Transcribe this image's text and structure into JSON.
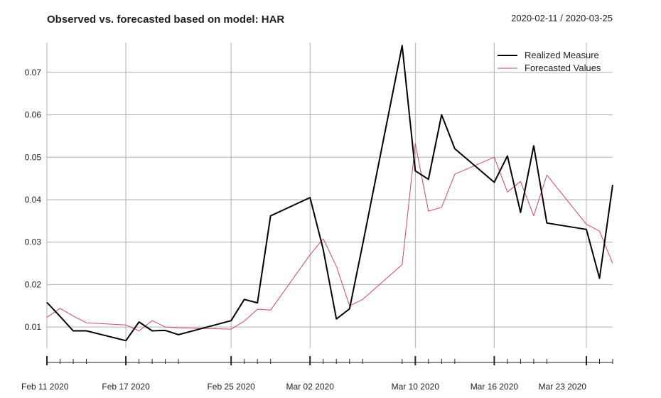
{
  "chart_data": {
    "type": "line",
    "title": "Observed vs. forecasted based on model:  HAR",
    "date_range": "2020-02-11 / 2020-03-25",
    "xlabel": "",
    "ylabel": "",
    "ylim": [
      0.005,
      0.077
    ],
    "yticks": [
      0.01,
      0.02,
      0.03,
      0.04,
      0.05,
      0.06,
      0.07
    ],
    "ytick_labels": [
      "0.01",
      "0.02",
      "0.03",
      "0.04",
      "0.05",
      "0.06",
      "0.07"
    ],
    "xticks": [
      {
        "x": "2020-02-11",
        "label": "Feb 11 2020"
      },
      {
        "x": "2020-02-17",
        "label": "Feb 17 2020"
      },
      {
        "x": "2020-02-25",
        "label": "Feb 25 2020"
      },
      {
        "x": "2020-03-02",
        "label": "Mar 02 2020"
      },
      {
        "x": "2020-03-10",
        "label": "Mar 10 2020"
      },
      {
        "x": "2020-03-16",
        "label": "Mar 16 2020"
      },
      {
        "x": "2020-03-23",
        "label": "Mar 23 2020"
      }
    ],
    "grid": true,
    "legend_position": "top-right",
    "x": [
      "2020-02-11",
      "2020-02-12",
      "2020-02-13",
      "2020-02-14",
      "2020-02-17",
      "2020-02-18",
      "2020-02-19",
      "2020-02-20",
      "2020-02-21",
      "2020-02-25",
      "2020-02-26",
      "2020-02-27",
      "2020-02-28",
      "2020-03-02",
      "2020-03-03",
      "2020-03-04",
      "2020-03-05",
      "2020-03-06",
      "2020-03-09",
      "2020-03-10",
      "2020-03-11",
      "2020-03-12",
      "2020-03-13",
      "2020-03-16",
      "2020-03-17",
      "2020-03-18",
      "2020-03-19",
      "2020-03-20",
      "2020-03-23",
      "2020-03-24",
      "2020-03-25"
    ],
    "series": [
      {
        "name": "Realized Measure",
        "color": "#000000",
        "values": [
          0.0158,
          0.0125,
          0.0091,
          0.0091,
          0.0068,
          0.0112,
          0.0091,
          0.0092,
          0.0082,
          0.0115,
          0.0165,
          0.0157,
          0.0362,
          0.0405,
          0.0283,
          0.0119,
          0.0143,
          0.0295,
          0.0763,
          0.0468,
          0.0448,
          0.06,
          0.052,
          0.0441,
          0.0503,
          0.037,
          0.0527,
          0.0345,
          0.033,
          0.0215,
          0.0435
        ]
      },
      {
        "name": "Forecasted Values",
        "color": "#d1495b",
        "values": [
          0.0123,
          0.0144,
          0.0126,
          0.011,
          0.0105,
          0.0091,
          0.0115,
          0.01,
          0.0098,
          0.0095,
          0.0114,
          0.0142,
          0.014,
          0.027,
          0.0308,
          0.0243,
          0.015,
          0.0165,
          0.0247,
          0.0532,
          0.0373,
          0.0382,
          0.046,
          0.05,
          0.0418,
          0.0443,
          0.0362,
          0.0458,
          0.0342,
          0.0326,
          0.025
        ]
      }
    ]
  }
}
